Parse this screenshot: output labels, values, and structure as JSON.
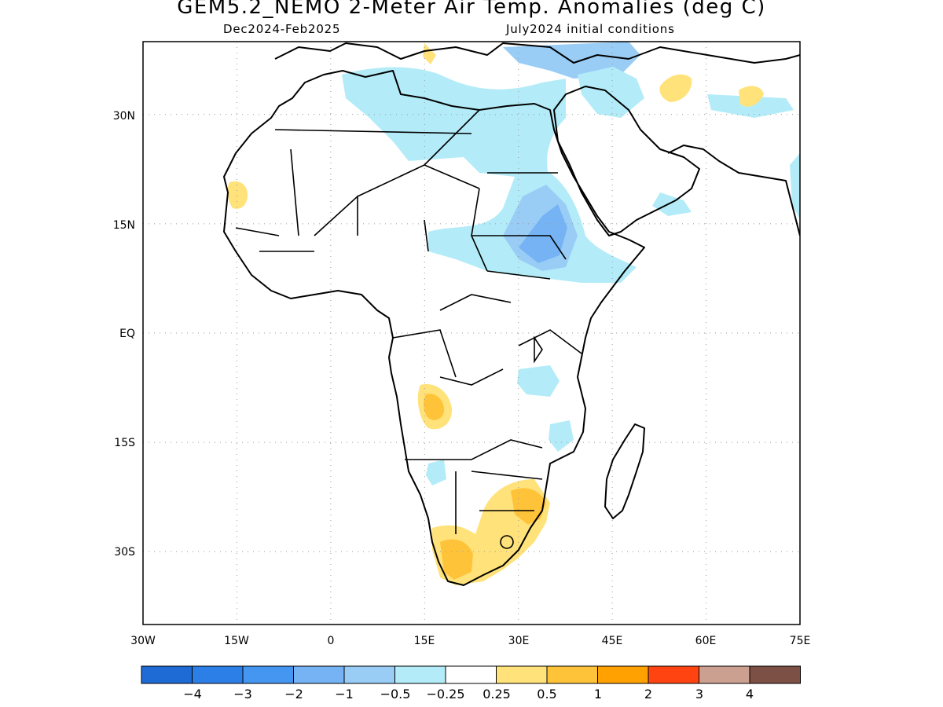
{
  "title": "GEM5.2_NEMO 2-Meter Air Temp. Anomalies (deg C)",
  "subtitle_left": "Dec2024-Feb2025",
  "subtitle_right": "July2024 initial conditions",
  "map": {
    "lon_range": [
      -30,
      75
    ],
    "lat_range": [
      -40,
      40
    ],
    "grid": "dotted",
    "x_tick_labels": [
      "30W",
      "15W",
      "0",
      "15E",
      "30E",
      "45E",
      "60E",
      "75E"
    ],
    "x_tick_values": [
      -30,
      -15,
      0,
      15,
      30,
      45,
      60,
      75
    ],
    "y_tick_labels": [
      "30N",
      "15N",
      "EQ",
      "15S",
      "30S"
    ],
    "y_tick_values": [
      30,
      15,
      0,
      -15,
      -30
    ]
  },
  "colorbar": {
    "colors": [
      "#1f6bd6",
      "#2d7fe8",
      "#4596f0",
      "#75b3f4",
      "#99cdf6",
      "#b3ecf8",
      "#ffffff",
      "#ffe27a",
      "#ffc33a",
      "#ffa201",
      "#ff4412",
      "#cba091",
      "#7c5044"
    ],
    "labels": [
      "-4",
      "-3",
      "-2",
      "-1",
      "-0.5",
      "-0.25",
      "0.25",
      "0.5",
      "1",
      "2",
      "3",
      "4"
    ]
  },
  "anomaly_regions": [
    {
      "name": "north-africa-cool",
      "color": "#b3ecf8"
    },
    {
      "name": "sahel-sudan-cool",
      "color": "#b3ecf8"
    },
    {
      "name": "sudan-cool-core",
      "color": "#99cdf6"
    },
    {
      "name": "sudan-cool-center",
      "color": "#75b3f4"
    },
    {
      "name": "mediterranean-cool",
      "color": "#99cdf6"
    },
    {
      "name": "arabia-cool",
      "color": "#b3ecf8"
    },
    {
      "name": "east-africa-cool",
      "color": "#b3ecf8"
    },
    {
      "name": "angola-warm",
      "color": "#ffe27a"
    },
    {
      "name": "angola-warm-core",
      "color": "#ffc33a"
    },
    {
      "name": "southern-africa-warm",
      "color": "#ffe27a"
    },
    {
      "name": "southern-africa-warm-core",
      "color": "#ffc33a"
    },
    {
      "name": "west-africa-warm",
      "color": "#ffe27a"
    },
    {
      "name": "iran-warm",
      "color": "#ffe27a"
    }
  ]
}
